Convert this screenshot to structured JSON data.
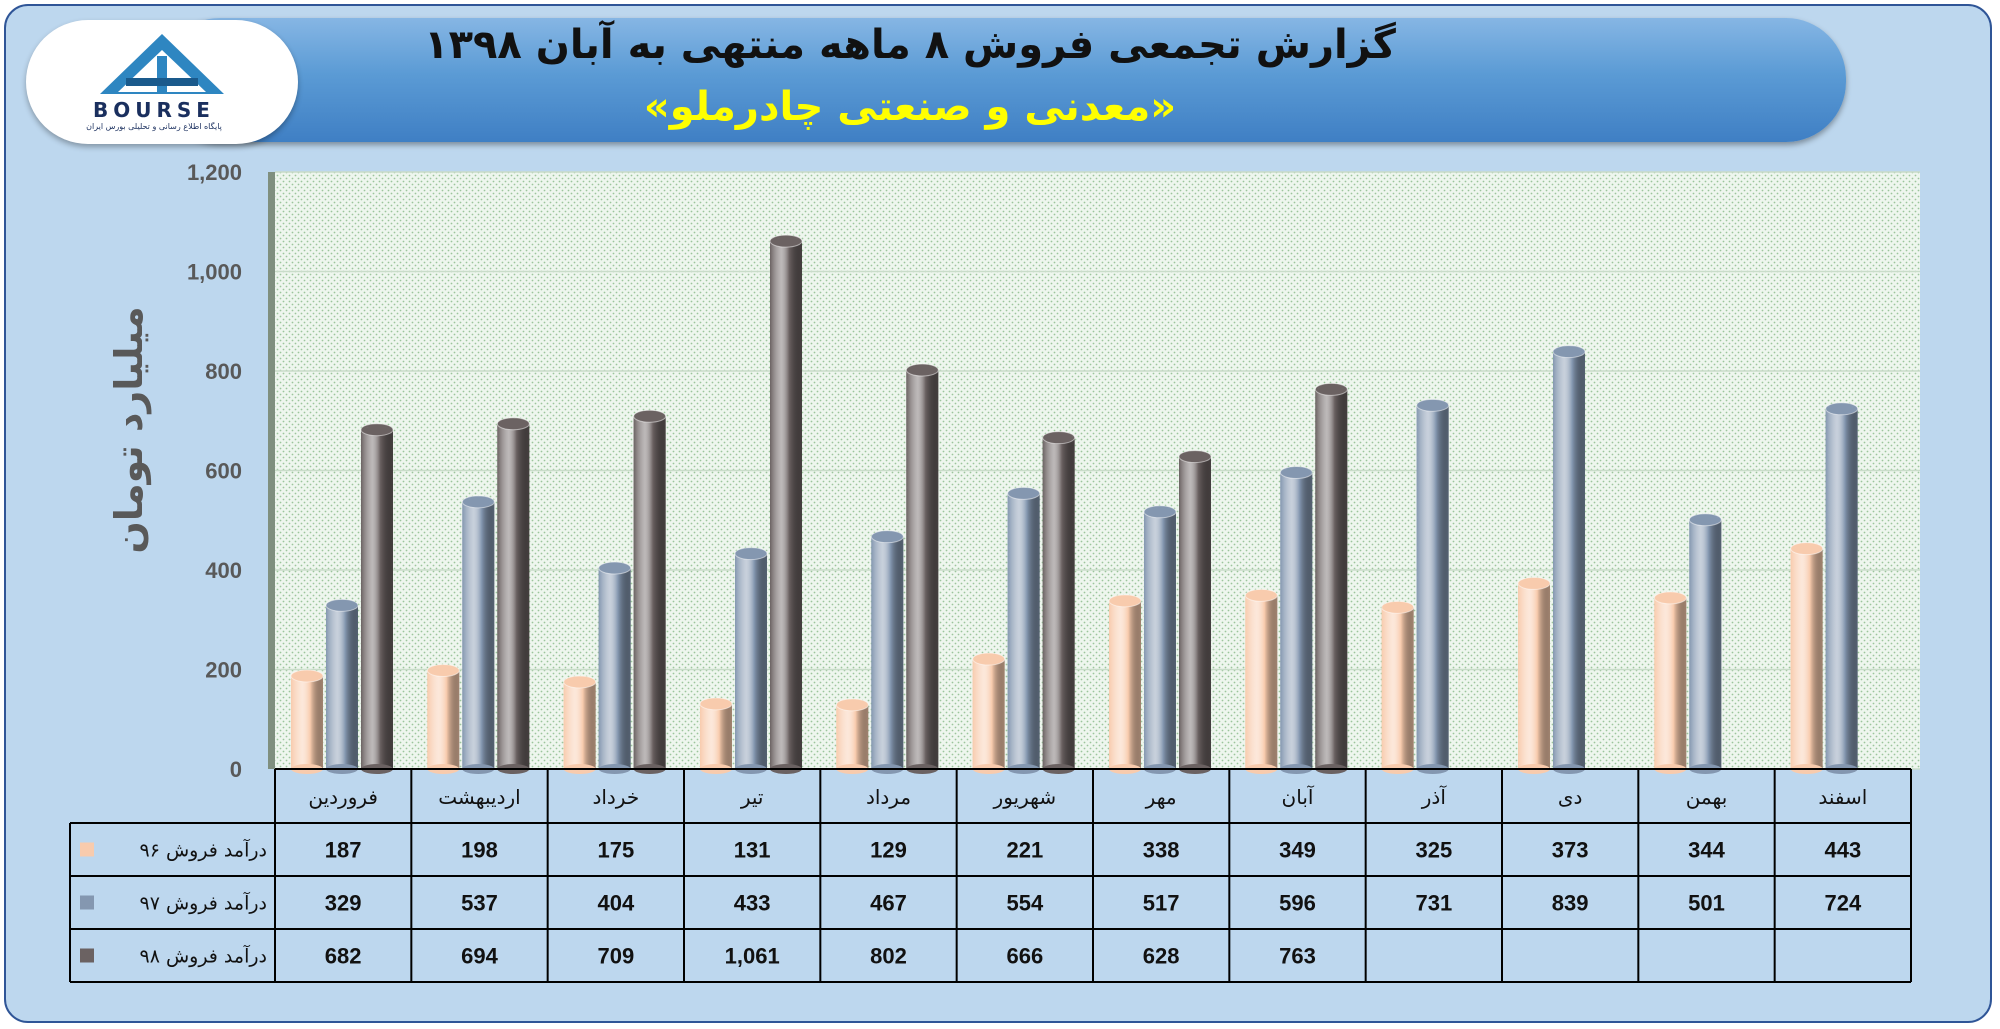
{
  "header": {
    "title": "گزارش تجمعی فروش ۸ ماهه منتهی به آبان ۱۳۹۸",
    "subtitle": "«معدنی و صنعتی چادرملو»"
  },
  "logo": {
    "text": "BOURSE",
    "tagline": "پایگاه اطلاع رسانی و تحلیلی بورس ایران"
  },
  "colors": {
    "s96": "#f8cbad",
    "s97": "#8497b0",
    "s98": "#6b6262"
  },
  "chart_data": {
    "type": "bar",
    "ylabel": "میلیارد تومان",
    "ylim": [
      0,
      1200
    ],
    "yticks": [
      "0",
      "200",
      "400",
      "600",
      "800",
      "1,000",
      "1,200"
    ],
    "legend_placement": "data-table",
    "categories": [
      "فروردین",
      "اردیبهشت",
      "خرداد",
      "تیر",
      "مرداد",
      "شهریور",
      "مهر",
      "آبان",
      "آذر",
      "دی",
      "بهمن",
      "اسفند"
    ],
    "series": [
      {
        "name": "درآمد فروش ۹۶",
        "values": [
          187,
          198,
          175,
          131,
          129,
          221,
          338,
          349,
          325,
          373,
          344,
          443
        ],
        "labels": [
          "187",
          "198",
          "175",
          "131",
          "129",
          "221",
          "338",
          "349",
          "325",
          "373",
          "344",
          "443"
        ]
      },
      {
        "name": "درآمد فروش ۹۷",
        "values": [
          329,
          537,
          404,
          433,
          467,
          554,
          517,
          596,
          731,
          839,
          501,
          724
        ],
        "labels": [
          "329",
          "537",
          "404",
          "433",
          "467",
          "554",
          "517",
          "596",
          "731",
          "839",
          "501",
          "724"
        ]
      },
      {
        "name": "درآمد فروش ۹۸",
        "values": [
          682,
          694,
          709,
          1061,
          802,
          666,
          628,
          763,
          null,
          null,
          null,
          null
        ],
        "labels": [
          "682",
          "694",
          "709",
          "1,061",
          "802",
          "666",
          "628",
          "763",
          "",
          "",
          "",
          ""
        ]
      }
    ]
  }
}
